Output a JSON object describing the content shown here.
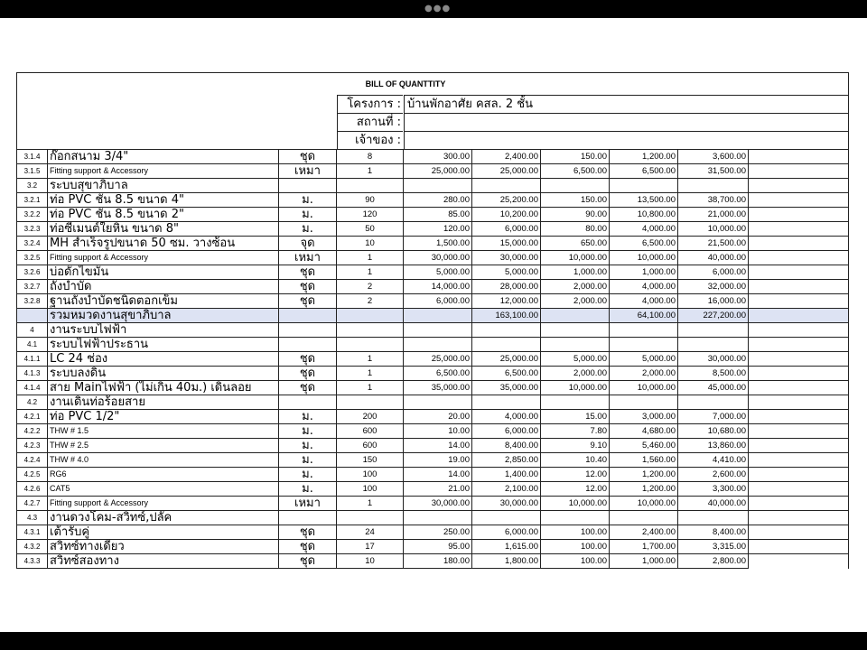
{
  "title": "BILL OF QUANTTITY",
  "info": [
    {
      "label": "โครงการ :",
      "value": "บ้านพักอาศัย คสล. 2 ชั้น"
    },
    {
      "label": "สถานที่ :",
      "value": ""
    },
    {
      "label": "เจ้าของ :",
      "value": ""
    }
  ],
  "rows": [
    [
      "3.1.4",
      "ก๊อกสนาม 3/4\"",
      "ชุด",
      "8",
      "300.00",
      "2,400.00",
      "150.00",
      "1,200.00",
      "3,600.00"
    ],
    [
      "3.1.5",
      "Fitting support & Accessory",
      "เหมา",
      "1",
      "25,000.00",
      "25,000.00",
      "6,500.00",
      "6,500.00",
      "31,500.00"
    ],
    [
      "3.2",
      "ระบบสุขาภิบาล",
      "",
      "",
      "",
      "",
      "",
      "",
      ""
    ],
    [
      "3.2.1",
      "ท่อ PVC ชั้น 8.5 ขนาด 4\"",
      "ม.",
      "90",
      "280.00",
      "25,200.00",
      "150.00",
      "13,500.00",
      "38,700.00"
    ],
    [
      "3.2.2",
      "ท่อ PVC ชั้น 8.5 ขนาด 2\"",
      "ม.",
      "120",
      "85.00",
      "10,200.00",
      "90.00",
      "10,800.00",
      "21,000.00"
    ],
    [
      "3.2.3",
      "ท่อซีเมนต์ใยหิน ขนาด 8\"",
      "ม.",
      "50",
      "120.00",
      "6,000.00",
      "80.00",
      "4,000.00",
      "10,000.00"
    ],
    [
      "3.2.4",
      "MH สำเร็จรูปขนาด 50 ซม. วางซ้อน",
      "จุด",
      "10",
      "1,500.00",
      "15,000.00",
      "650.00",
      "6,500.00",
      "21,500.00"
    ],
    [
      "3.2.5",
      "Fitting support & Accessory",
      "เหมา",
      "1",
      "30,000.00",
      "30,000.00",
      "10,000.00",
      "10,000.00",
      "40,000.00"
    ],
    [
      "3.2.6",
      "บ่อดักไขมัน",
      "ชุด",
      "1",
      "5,000.00",
      "5,000.00",
      "1,000.00",
      "1,000.00",
      "6,000.00"
    ],
    [
      "3.2.7",
      "ถังบำบัด",
      "ชุด",
      "2",
      "14,000.00",
      "28,000.00",
      "2,000.00",
      "4,000.00",
      "32,000.00"
    ],
    [
      "3.2.8",
      "ฐานถังบำบัดชนิดตอกเข็ม",
      "ชุด",
      "2",
      "6,000.00",
      "12,000.00",
      "2,000.00",
      "4,000.00",
      "16,000.00"
    ],
    [
      "",
      "รวมหมวดงานสุขาภิบาล",
      "",
      "",
      "",
      "163,100.00",
      "",
      "64,100.00",
      "227,200.00"
    ],
    [
      "4",
      "งานระบบไฟฟ้า",
      "",
      "",
      "",
      "",
      "",
      "",
      ""
    ],
    [
      "4.1",
      "ระบบไฟฟ้าประธาน",
      "",
      "",
      "",
      "",
      "",
      "",
      ""
    ],
    [
      "4.1.1",
      "LC 24 ช่อง",
      "ชุด",
      "1",
      "25,000.00",
      "25,000.00",
      "5,000.00",
      "5,000.00",
      "30,000.00"
    ],
    [
      "4.1.3",
      "ระบบลงดิน",
      "ชุด",
      "1",
      "6,500.00",
      "6,500.00",
      "2,000.00",
      "2,000.00",
      "8,500.00"
    ],
    [
      "4.1.4",
      "สาย Mainไฟฟ้า (ไม่เกิน 40ม.) เดินลอย",
      "ชุด",
      "1",
      "35,000.00",
      "35,000.00",
      "10,000.00",
      "10,000.00",
      "45,000.00"
    ],
    [
      "4.2",
      "งานเดินท่อร้อยสาย",
      "",
      "",
      "",
      "",
      "",
      "",
      ""
    ],
    [
      "4.2.1",
      "ท่อ PVC 1/2\"",
      "ม.",
      "200",
      "20.00",
      "4,000.00",
      "15.00",
      "3,000.00",
      "7,000.00"
    ],
    [
      "4.2.2",
      "THW # 1.5",
      "ม.",
      "600",
      "10.00",
      "6,000.00",
      "7.80",
      "4,680.00",
      "10,680.00"
    ],
    [
      "4.2.3",
      "THW # 2.5",
      "ม.",
      "600",
      "14.00",
      "8,400.00",
      "9.10",
      "5,460.00",
      "13,860.00"
    ],
    [
      "4.2.4",
      "THW # 4.0",
      "ม.",
      "150",
      "19.00",
      "2,850.00",
      "10.40",
      "1,560.00",
      "4,410.00"
    ],
    [
      "4.2.5",
      "RG6",
      "ม.",
      "100",
      "14.00",
      "1,400.00",
      "12.00",
      "1,200.00",
      "2,600.00"
    ],
    [
      "4.2.6",
      "CAT5",
      "ม.",
      "100",
      "21.00",
      "2,100.00",
      "12.00",
      "1,200.00",
      "3,300.00"
    ],
    [
      "4.2.7",
      "Fitting support & Accessory",
      "เหมา",
      "1",
      "30,000.00",
      "30,000.00",
      "10,000.00",
      "10,000.00",
      "40,000.00"
    ],
    [
      "4.3",
      "งานดวงโคม-สวิทซ์,ปลั๊ค",
      "",
      "",
      "",
      "",
      "",
      "",
      ""
    ],
    [
      "4.3.1",
      "เต้ารับคู่",
      "ชุด",
      "24",
      "250.00",
      "6,000.00",
      "100.00",
      "2,400.00",
      "8,400.00"
    ],
    [
      "4.3.2",
      "สวิทซ์ทางเดียว",
      "ชุด",
      "17",
      "95.00",
      "1,615.00",
      "100.00",
      "1,700.00",
      "3,315.00"
    ],
    [
      "4.3.3",
      "สวิทซ์สองทาง",
      "ชุด",
      "10",
      "180.00",
      "1,800.00",
      "100.00",
      "1,000.00",
      "2,800.00"
    ]
  ],
  "summary_row_color": "#dde3f3"
}
